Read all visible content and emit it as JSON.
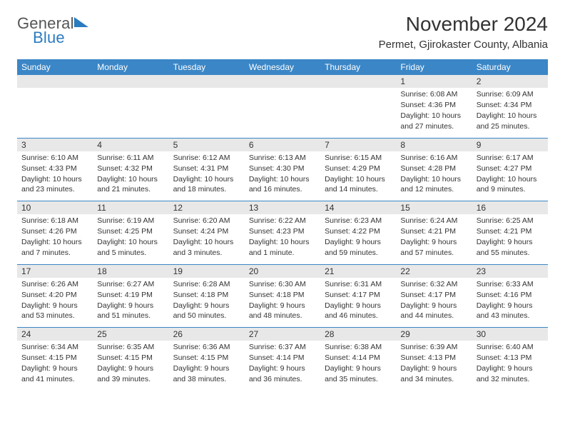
{
  "logo": {
    "line1": "General",
    "line2": "Blue"
  },
  "header": {
    "month_title": "November 2024",
    "location": "Permet, Gjirokaster County, Albania"
  },
  "colors": {
    "header_bg": "#3b86c6",
    "header_text": "#ffffff",
    "daynum_bg": "#e8e8e8",
    "row_border": "#3b86c6",
    "text": "#333333",
    "logo_gray": "#555555",
    "logo_blue": "#2b7bbf"
  },
  "day_headers": [
    "Sunday",
    "Monday",
    "Tuesday",
    "Wednesday",
    "Thursday",
    "Friday",
    "Saturday"
  ],
  "weeks": [
    [
      {
        "n": "",
        "sr": "",
        "ss": "",
        "dl": ""
      },
      {
        "n": "",
        "sr": "",
        "ss": "",
        "dl": ""
      },
      {
        "n": "",
        "sr": "",
        "ss": "",
        "dl": ""
      },
      {
        "n": "",
        "sr": "",
        "ss": "",
        "dl": ""
      },
      {
        "n": "",
        "sr": "",
        "ss": "",
        "dl": ""
      },
      {
        "n": "1",
        "sr": "Sunrise: 6:08 AM",
        "ss": "Sunset: 4:36 PM",
        "dl": "Daylight: 10 hours and 27 minutes."
      },
      {
        "n": "2",
        "sr": "Sunrise: 6:09 AM",
        "ss": "Sunset: 4:34 PM",
        "dl": "Daylight: 10 hours and 25 minutes."
      }
    ],
    [
      {
        "n": "3",
        "sr": "Sunrise: 6:10 AM",
        "ss": "Sunset: 4:33 PM",
        "dl": "Daylight: 10 hours and 23 minutes."
      },
      {
        "n": "4",
        "sr": "Sunrise: 6:11 AM",
        "ss": "Sunset: 4:32 PM",
        "dl": "Daylight: 10 hours and 21 minutes."
      },
      {
        "n": "5",
        "sr": "Sunrise: 6:12 AM",
        "ss": "Sunset: 4:31 PM",
        "dl": "Daylight: 10 hours and 18 minutes."
      },
      {
        "n": "6",
        "sr": "Sunrise: 6:13 AM",
        "ss": "Sunset: 4:30 PM",
        "dl": "Daylight: 10 hours and 16 minutes."
      },
      {
        "n": "7",
        "sr": "Sunrise: 6:15 AM",
        "ss": "Sunset: 4:29 PM",
        "dl": "Daylight: 10 hours and 14 minutes."
      },
      {
        "n": "8",
        "sr": "Sunrise: 6:16 AM",
        "ss": "Sunset: 4:28 PM",
        "dl": "Daylight: 10 hours and 12 minutes."
      },
      {
        "n": "9",
        "sr": "Sunrise: 6:17 AM",
        "ss": "Sunset: 4:27 PM",
        "dl": "Daylight: 10 hours and 9 minutes."
      }
    ],
    [
      {
        "n": "10",
        "sr": "Sunrise: 6:18 AM",
        "ss": "Sunset: 4:26 PM",
        "dl": "Daylight: 10 hours and 7 minutes."
      },
      {
        "n": "11",
        "sr": "Sunrise: 6:19 AM",
        "ss": "Sunset: 4:25 PM",
        "dl": "Daylight: 10 hours and 5 minutes."
      },
      {
        "n": "12",
        "sr": "Sunrise: 6:20 AM",
        "ss": "Sunset: 4:24 PM",
        "dl": "Daylight: 10 hours and 3 minutes."
      },
      {
        "n": "13",
        "sr": "Sunrise: 6:22 AM",
        "ss": "Sunset: 4:23 PM",
        "dl": "Daylight: 10 hours and 1 minute."
      },
      {
        "n": "14",
        "sr": "Sunrise: 6:23 AM",
        "ss": "Sunset: 4:22 PM",
        "dl": "Daylight: 9 hours and 59 minutes."
      },
      {
        "n": "15",
        "sr": "Sunrise: 6:24 AM",
        "ss": "Sunset: 4:21 PM",
        "dl": "Daylight: 9 hours and 57 minutes."
      },
      {
        "n": "16",
        "sr": "Sunrise: 6:25 AM",
        "ss": "Sunset: 4:21 PM",
        "dl": "Daylight: 9 hours and 55 minutes."
      }
    ],
    [
      {
        "n": "17",
        "sr": "Sunrise: 6:26 AM",
        "ss": "Sunset: 4:20 PM",
        "dl": "Daylight: 9 hours and 53 minutes."
      },
      {
        "n": "18",
        "sr": "Sunrise: 6:27 AM",
        "ss": "Sunset: 4:19 PM",
        "dl": "Daylight: 9 hours and 51 minutes."
      },
      {
        "n": "19",
        "sr": "Sunrise: 6:28 AM",
        "ss": "Sunset: 4:18 PM",
        "dl": "Daylight: 9 hours and 50 minutes."
      },
      {
        "n": "20",
        "sr": "Sunrise: 6:30 AM",
        "ss": "Sunset: 4:18 PM",
        "dl": "Daylight: 9 hours and 48 minutes."
      },
      {
        "n": "21",
        "sr": "Sunrise: 6:31 AM",
        "ss": "Sunset: 4:17 PM",
        "dl": "Daylight: 9 hours and 46 minutes."
      },
      {
        "n": "22",
        "sr": "Sunrise: 6:32 AM",
        "ss": "Sunset: 4:17 PM",
        "dl": "Daylight: 9 hours and 44 minutes."
      },
      {
        "n": "23",
        "sr": "Sunrise: 6:33 AM",
        "ss": "Sunset: 4:16 PM",
        "dl": "Daylight: 9 hours and 43 minutes."
      }
    ],
    [
      {
        "n": "24",
        "sr": "Sunrise: 6:34 AM",
        "ss": "Sunset: 4:15 PM",
        "dl": "Daylight: 9 hours and 41 minutes."
      },
      {
        "n": "25",
        "sr": "Sunrise: 6:35 AM",
        "ss": "Sunset: 4:15 PM",
        "dl": "Daylight: 9 hours and 39 minutes."
      },
      {
        "n": "26",
        "sr": "Sunrise: 6:36 AM",
        "ss": "Sunset: 4:15 PM",
        "dl": "Daylight: 9 hours and 38 minutes."
      },
      {
        "n": "27",
        "sr": "Sunrise: 6:37 AM",
        "ss": "Sunset: 4:14 PM",
        "dl": "Daylight: 9 hours and 36 minutes."
      },
      {
        "n": "28",
        "sr": "Sunrise: 6:38 AM",
        "ss": "Sunset: 4:14 PM",
        "dl": "Daylight: 9 hours and 35 minutes."
      },
      {
        "n": "29",
        "sr": "Sunrise: 6:39 AM",
        "ss": "Sunset: 4:13 PM",
        "dl": "Daylight: 9 hours and 34 minutes."
      },
      {
        "n": "30",
        "sr": "Sunrise: 6:40 AM",
        "ss": "Sunset: 4:13 PM",
        "dl": "Daylight: 9 hours and 32 minutes."
      }
    ]
  ]
}
